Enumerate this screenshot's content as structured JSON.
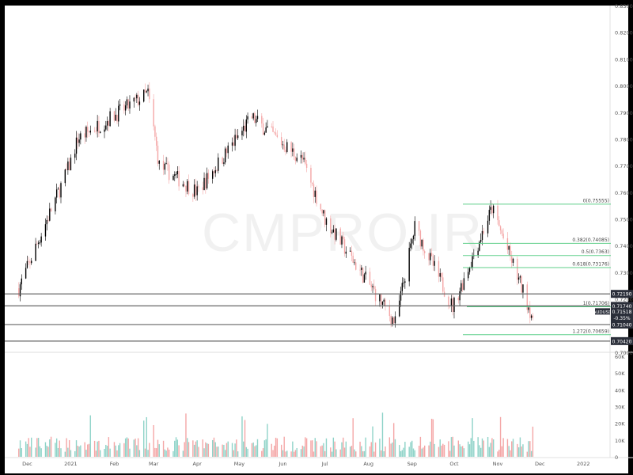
{
  "watermark": "CMPRO.IR",
  "colors": {
    "bull": "#000000",
    "bear": "#f4a6a6",
    "vol_bull": "#8fd3c8",
    "vol_bear": "#f4a6a6",
    "fib": "#5fcf8a",
    "level": "#888888",
    "axis_text": "#555555",
    "price_tag": "#2a2e39"
  },
  "chart_data": {
    "type": "candlestick",
    "symbol": "AUDUSD",
    "y_axis": {
      "min": 0.7,
      "max": 0.83,
      "ticks": [
        "0.83000",
        "0.82000",
        "0.81000",
        "0.80000",
        "0.79000",
        "0.78000",
        "0.77000",
        "0.76000",
        "0.75000",
        "0.74000",
        "0.73000",
        "0.72000",
        "0.71000",
        "0.70000"
      ]
    },
    "volume_axis": {
      "max": 60000,
      "ticks": [
        "60K",
        "50K",
        "40K",
        "30K",
        "20K",
        "10K",
        "0"
      ]
    },
    "x_axis": {
      "labels": [
        "Dec",
        "2021",
        "Feb",
        "Mar",
        "Apr",
        "May",
        "Jun",
        "Jul",
        "Aug",
        "Sep",
        "Oct",
        "Nov",
        "Dec",
        "2022"
      ]
    },
    "key_points": [
      {
        "date": "2020-11-25",
        "close": 0.724
      },
      {
        "date": "2020-12-31",
        "close": 0.77
      },
      {
        "date": "2021-01-06",
        "close": 0.78
      },
      {
        "date": "2021-02-25",
        "close": 0.797
      },
      {
        "date": "2021-03-05",
        "close": 0.77
      },
      {
        "date": "2021-04-01",
        "close": 0.76
      },
      {
        "date": "2021-05-10",
        "close": 0.788
      },
      {
        "date": "2021-06-15",
        "close": 0.772
      },
      {
        "date": "2021-07-01",
        "close": 0.75
      },
      {
        "date": "2021-08-20",
        "close": 0.711
      },
      {
        "date": "2021-09-03",
        "close": 0.747
      },
      {
        "date": "2021-09-30",
        "close": 0.717
      },
      {
        "date": "2021-10-28",
        "close": 0.754
      },
      {
        "date": "2021-11-26",
        "close": 0.713
      }
    ],
    "horizontal_levels": [
      {
        "label": "0.72190",
        "value": 0.7219
      },
      {
        "label": "0.71740",
        "value": 0.7174
      },
      {
        "label": "0.71040",
        "value": 0.7104
      },
      {
        "label": "0.70420",
        "value": 0.7042
      }
    ],
    "last_price": {
      "symbol": "AUDUSD",
      "value": "0.71518",
      "change": "-0.35%"
    },
    "fibonacci": [
      {
        "label": "0(0.75555)",
        "value": 0.75555
      },
      {
        "label": "0.382(0.74085)",
        "value": 0.74085
      },
      {
        "label": "0.5(0.7363)",
        "value": 0.7363
      },
      {
        "label": "0.618(0.73176)",
        "value": 0.73176
      },
      {
        "label": "1(0.71706)",
        "value": 0.71706
      },
      {
        "label": "1.272(0.70659)",
        "value": 0.70659
      }
    ]
  }
}
